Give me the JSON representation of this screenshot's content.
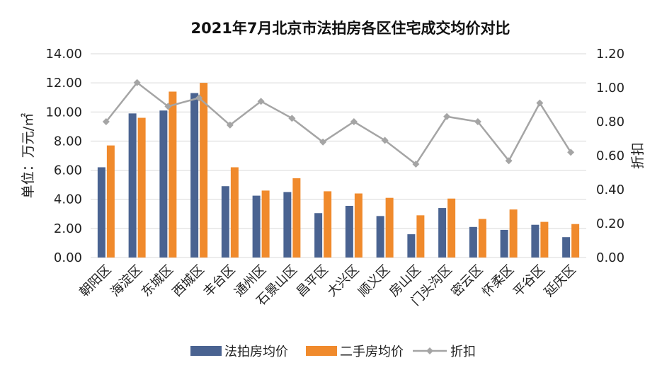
{
  "chart_data": {
    "type": "bar",
    "title": "2021年7月北京市法拍房各区住宅成交均价对比",
    "ylabel": "单位：万元/㎡",
    "y2label": "折扣",
    "ylim": [
      0,
      14
    ],
    "y2lim": [
      0,
      1.2
    ],
    "yticks": [
      "14.00",
      "12.00",
      "10.00",
      "8.00",
      "6.00",
      "4.00",
      "2.00",
      "0.00"
    ],
    "y2ticks": [
      "1.20",
      "1.00",
      "0.80",
      "0.60",
      "0.40",
      "0.20",
      "0.00"
    ],
    "categories": [
      "朝阳区",
      "海淀区",
      "东城区",
      "西城区",
      "丰台区",
      "通州区",
      "石景山区",
      "昌平区",
      "大兴区",
      "顺义区",
      "房山区",
      "门头沟区",
      "密云区",
      "怀柔区",
      "平谷区",
      "延庆区"
    ],
    "series": [
      {
        "name": "法拍房均价",
        "type": "bar",
        "axis": "left",
        "color": "#4a6391",
        "values": [
          6.2,
          9.9,
          10.1,
          11.3,
          4.9,
          4.25,
          4.5,
          3.05,
          3.55,
          2.85,
          1.6,
          3.4,
          2.1,
          1.9,
          2.25,
          1.4
        ]
      },
      {
        "name": "二手房均价",
        "type": "bar",
        "axis": "left",
        "color": "#f08a2c",
        "values": [
          7.7,
          9.6,
          11.4,
          12.0,
          6.2,
          4.6,
          5.45,
          4.55,
          4.4,
          4.1,
          2.9,
          4.05,
          2.65,
          3.3,
          2.45,
          2.3
        ]
      },
      {
        "name": "折扣",
        "type": "line",
        "axis": "right",
        "color": "#a5a5a5",
        "values": [
          0.8,
          1.03,
          0.89,
          0.94,
          0.78,
          0.92,
          0.82,
          0.68,
          0.8,
          0.69,
          0.55,
          0.83,
          0.8,
          0.57,
          0.91,
          0.62
        ]
      }
    ],
    "legend_position": "bottom",
    "grid": true
  }
}
